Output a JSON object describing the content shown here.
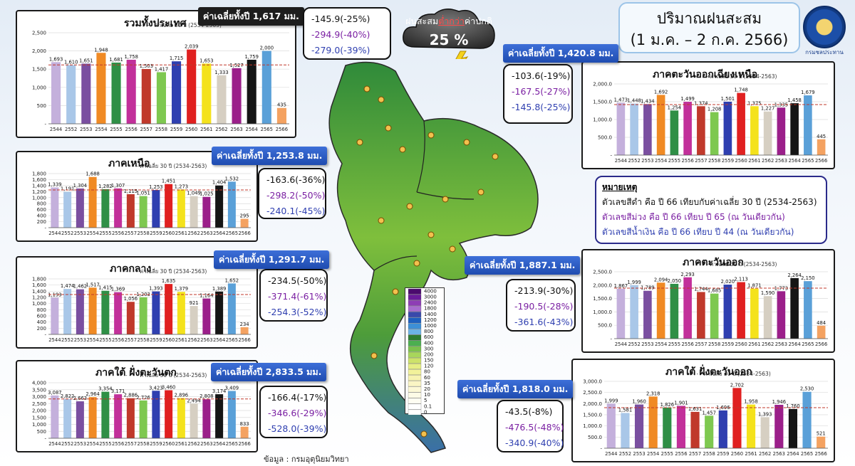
{
  "header": {
    "title_line1": "ปริมาณฝนสะสม",
    "title_line2": "(1 ม.ค. – 2 ก.ค. 2566)",
    "cloud_line": "ฝนสะสม ต่ำกว่า ค่าปกติ",
    "cloud_pre": "ฝนสะสม",
    "cloud_hl": "ต่ำกว่า",
    "cloud_post": "ค่าปกติ",
    "cloud_value": "25 %",
    "emblem_text": "กรมชลประทาน"
  },
  "legend": {
    "title": "หมายเหตุ",
    "line_black": "ตัวเลขสีดำ คือ ปี 66 เทียบกับค่าเฉลี่ย 30 ปี (2534-2563)",
    "line_purple": "ตัวเลขสีม่วง คือ ปี 66 เทียบ ปี 65 (ณ วันเดียวกัน)",
    "line_blue": "ตัวเลขสีน้ำเงิน คือ ปี 66 เทียบ ปี 44 (ณ วันเดียวกัน)"
  },
  "source": "ข้อมูล : กรมอุตุนิยมวิทยา",
  "colors": {
    "black": "#111111",
    "purple": "#7a1fa2",
    "blue": "#2f3fb0",
    "avg_line": "#c0392b",
    "tag": "#2a5bc4"
  },
  "map_scale": [
    "4000",
    "3000",
    "2400",
    "1800",
    "1400",
    "1200",
    "1000",
    "800",
    "600",
    "400",
    "300",
    "200",
    "150",
    "120",
    "80",
    "60",
    "35",
    "20",
    "10",
    "5",
    "0.1",
    "0"
  ],
  "chart_data": [
    {
      "type": "bar",
      "title": "รวมทั้งประเทศ",
      "avg_label": "ค่าเฉลี่ยทั้งปี 1,617 มม.",
      "ref_label": "ค่าเฉลี่ย 30 ปี (2534-2563)",
      "categories": [
        "2544",
        "2552",
        "2553",
        "2554",
        "2555",
        "2556",
        "2557",
        "2558",
        "2559",
        "2560",
        "2561",
        "2562",
        "2563",
        "2564",
        "2565",
        "2566"
      ],
      "values": [
        1693,
        1610,
        1651,
        1948,
        1681,
        1758,
        1503,
        1417,
        1715,
        2039,
        1653,
        1333,
        1527,
        1759,
        2000,
        435
      ],
      "value_labels": [
        "1,693",
        "1,610",
        "1,651",
        "1,948",
        "1,681",
        "1,758",
        "1,503",
        "1,417",
        "1,715",
        "2,039",
        "1,653",
        "1,333",
        "1,527",
        "1,759",
        "2,000",
        "435"
      ],
      "ymax": 2500,
      "yticks": [
        "-",
        "500",
        "1,000",
        "1,500",
        "2,000",
        "2,500"
      ],
      "ytick_vals": [
        0,
        500,
        1000,
        1500,
        2000,
        2500
      ],
      "ref": 1617,
      "deviations": [
        "-145.9(-25%)",
        "-294.9(-40%)",
        "-279.0(-39%)"
      ]
    },
    {
      "type": "bar",
      "title": "ภาคเหนือ",
      "avg_label": "ค่าเฉลี่ยทั้งปี 1,253.8 มม.",
      "ref_label": "ค่าเฉลี่ย 30 ปี (2534-2563)",
      "categories": [
        "2544",
        "2552",
        "2553",
        "2554",
        "2555",
        "2556",
        "2557",
        "2558",
        "2559",
        "2560",
        "2561",
        "2562",
        "2563",
        "2564",
        "2565",
        "2566"
      ],
      "values": [
        1339,
        1191,
        1304,
        1688,
        1282,
        1307,
        1115,
        1051,
        1253,
        1451,
        1273,
        1049,
        1025,
        1404,
        1532,
        295
      ],
      "value_labels": [
        "1,339",
        "1,191",
        "1,304",
        "1,688",
        "1,282",
        "1,307",
        "1,115",
        "1,051",
        "1,253",
        "1,451",
        "1,273",
        "1,049",
        "1,025",
        "1,404",
        "1,532",
        "295"
      ],
      "ymax": 1800,
      "yticks": [
        "-",
        "200",
        "400",
        "600",
        "800",
        "1,000",
        "1,200",
        "1,400",
        "1,600",
        "1,800"
      ],
      "ytick_vals": [
        0,
        200,
        400,
        600,
        800,
        1000,
        1200,
        1400,
        1600,
        1800
      ],
      "ref": 1253.8,
      "deviations": [
        "-163.6(-36%)",
        "-298.2(-50%)",
        "-240.1(-45%)"
      ]
    },
    {
      "type": "bar",
      "title": "ภาคกลาง",
      "avg_label": "ค่าเฉลี่ยทั้งปี 1,291.7 มม.",
      "ref_label": "ค่าเฉลี่ย 30 ปี (2534-2563)",
      "categories": [
        "2544",
        "2552",
        "2553",
        "2554",
        "2555",
        "2556",
        "2557",
        "2558",
        "2559",
        "2560",
        "2561",
        "2562",
        "2563",
        "2564",
        "2565",
        "2566"
      ],
      "values": [
        1193,
        1474,
        1462,
        1517,
        1415,
        1369,
        1056,
        1203,
        1393,
        1635,
        1379,
        921,
        1164,
        1389,
        1652,
        234
      ],
      "value_labels": [
        "1,193",
        "1,474",
        "1,462",
        "1,517",
        "1,415",
        "1,369",
        "1,056",
        "1,203",
        "1,393",
        "1,635",
        "1,379",
        "921",
        "1,164",
        "1,389",
        "1,652",
        "234"
      ],
      "ymax": 1800,
      "yticks": [
        "-",
        "200",
        "400",
        "600",
        "800",
        "1,000",
        "1,200",
        "1,400",
        "1,600",
        "1,800"
      ],
      "ytick_vals": [
        0,
        200,
        400,
        600,
        800,
        1000,
        1200,
        1400,
        1600,
        1800
      ],
      "ref": 1291.7,
      "deviations": [
        "-234.5(-50%)",
        "-371.4(-61%)",
        "-254.3(-52%)"
      ]
    },
    {
      "type": "bar",
      "title": "ภาคใต้ ฝั่งตะวันตก",
      "avg_label": "ค่าเฉลี่ยทั้งปี 2,833.5 มม.",
      "ref_label": "ค่าเฉลี่ย 30 ปี (2534-2563)",
      "categories": [
        "2544",
        "2552",
        "2553",
        "2554",
        "2555",
        "2556",
        "2557",
        "2558",
        "2559",
        "2560",
        "2561",
        "2562",
        "2563",
        "2564",
        "2565",
        "2566"
      ],
      "values": [
        3087,
        2822,
        2663,
        2964,
        3354,
        3171,
        2886,
        2726,
        3423,
        3460,
        2896,
        2494,
        2808,
        3174,
        3409,
        833
      ],
      "value_labels": [
        "3,087",
        "2,822",
        "2,663",
        "2,964",
        "3,354",
        "3,171",
        "2,886",
        "2,726",
        "3,423",
        "3,460",
        "2,896",
        "2,494",
        "2,808",
        "3,174",
        "3,409",
        "833"
      ],
      "ymax": 4000,
      "yticks": [
        "-",
        "500",
        "1,000",
        "1,500",
        "2,000",
        "2,500",
        "3,000",
        "3,500",
        "4,000"
      ],
      "ytick_vals": [
        0,
        500,
        1000,
        1500,
        2000,
        2500,
        3000,
        3500,
        4000
      ],
      "ref": 2833.5,
      "deviations": [
        "-166.4(-17%)",
        "-346.6(-29%)",
        "-528.0(-39%)"
      ]
    },
    {
      "type": "bar",
      "title": "ภาคตะวันออกเฉียงเหนือ",
      "avg_label": "ค่าเฉลี่ยทั้งปี 1,420.8 มม.",
      "ref_label": "ค่าเฉลี่ย 30 ปี (2534-2563)",
      "categories": [
        "2544",
        "2552",
        "2553",
        "2554",
        "2555",
        "2556",
        "2557",
        "2558",
        "2559",
        "2560",
        "2561",
        "2562",
        "2563",
        "2564",
        "2565",
        "2566"
      ],
      "values": [
        1473,
        1448,
        1434,
        1692,
        1254,
        1499,
        1374,
        1208,
        1501,
        1748,
        1375,
        1227,
        1335,
        1458,
        1679,
        445
      ],
      "value_labels": [
        "1,473",
        "1,448",
        "1,434",
        "1,692",
        "1,254",
        "1,499",
        "1,374",
        "1,208",
        "1,501",
        "1,748",
        "1,375",
        "1,227",
        "1,335",
        "1,458",
        "1,679",
        "445"
      ],
      "ymax": 2000,
      "yticks": [
        "-",
        "500.0",
        "1,000.0",
        "1,500.0",
        "2,000.0"
      ],
      "ytick_vals": [
        0,
        500,
        1000,
        1500,
        2000
      ],
      "ref": 1420.8,
      "deviations": [
        "-103.6(-19%)",
        "-167.5(-27%)",
        "-145.8(-25%)"
      ]
    },
    {
      "type": "bar",
      "title": "ภาคตะวันออก",
      "avg_label": "ค่าเฉลี่ยทั้งปี 1,887.1 มม.",
      "ref_label": "ค่าเฉลี่ย 30 ปี (2534-2563)",
      "categories": [
        "2544",
        "2552",
        "2553",
        "2554",
        "2555",
        "2556",
        "2557",
        "2558",
        "2559",
        "2560",
        "2561",
        "2562",
        "2563",
        "2564",
        "2565",
        "2566"
      ],
      "values": [
        1867,
        1999,
        1789,
        2094,
        2050,
        2293,
        1744,
        1685,
        2020,
        2113,
        1871,
        1590,
        1773,
        2264,
        2150,
        484
      ],
      "value_labels": [
        "1,867",
        "1,999",
        "1,789",
        "2,094",
        "2,050",
        "2,293",
        "1,744",
        "1,685",
        "2,020",
        "2,113",
        "1,871",
        "1,590",
        "1,773",
        "2,264",
        "2,150",
        "484"
      ],
      "ymax": 2500,
      "yticks": [
        "-",
        "500.0",
        "1,000.0",
        "1,500.0",
        "2,000.0",
        "2,500.0"
      ],
      "ytick_vals": [
        0,
        500,
        1000,
        1500,
        2000,
        2500
      ],
      "ref": 1887.1,
      "deviations": [
        "-213.9(-30%)",
        "-190.5(-28%)",
        "-361.6(-43%)"
      ]
    },
    {
      "type": "bar",
      "title": "ภาคใต้ ฝั่งตะวันออก",
      "avg_label": "ค่าเฉลี่ยทั้งปี 1,818.0 มม.",
      "ref_label": "ค่าเฉลี่ย 30 ปี (2534-2563)",
      "categories": [
        "2544",
        "2552",
        "2553",
        "2554",
        "2555",
        "2556",
        "2557",
        "2558",
        "2559",
        "2560",
        "2561",
        "2562",
        "2563",
        "2564",
        "2565",
        "2566"
      ],
      "values": [
        1999,
        1581,
        1960,
        2318,
        1826,
        1901,
        1631,
        1457,
        1696,
        2702,
        1958,
        1393,
        1946,
        1760,
        2530,
        521
      ],
      "value_labels": [
        "1,999",
        "1,581",
        "1,960",
        "2,318",
        "1,826",
        "1,901",
        "1,631",
        "1,457",
        "1,696",
        "2,702",
        "1,958",
        "1,393",
        "1,946",
        "1,760",
        "2,530",
        "521"
      ],
      "ymax": 3000,
      "yticks": [
        "-",
        "500.0",
        "1,000.0",
        "1,500.0",
        "2,000.0",
        "2,500.0",
        "3,000.0"
      ],
      "ytick_vals": [
        0,
        500,
        1000,
        1500,
        2000,
        2500,
        3000
      ],
      "ref": 1818.0,
      "deviations": [
        "-43.5(-8%)",
        "-476.5(-48%)",
        "-340.9(-40%)"
      ]
    }
  ]
}
